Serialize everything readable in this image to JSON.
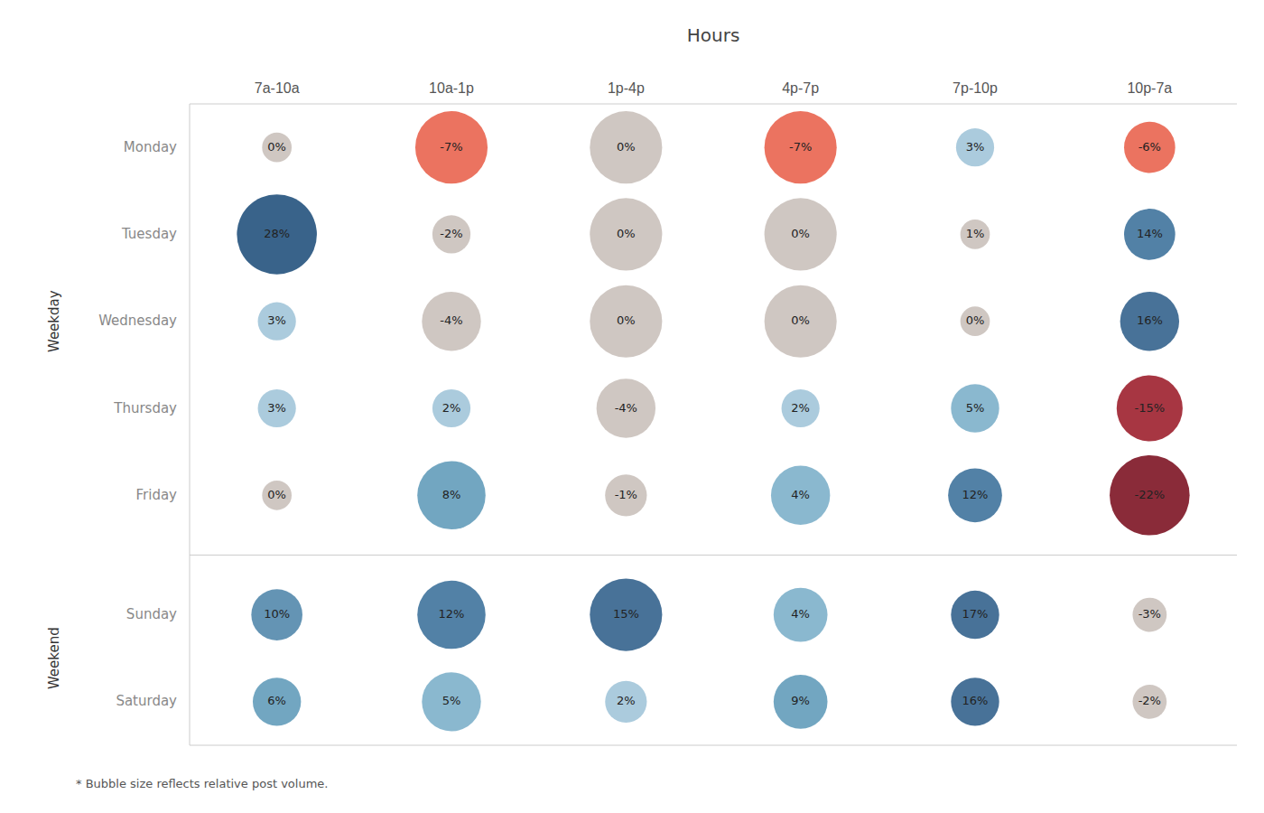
{
  "chart_data": {
    "type": "bubble",
    "title": "Hours",
    "categories": [
      "7a-10a",
      "10a-1p",
      "1p-4p",
      "4p-7p",
      "7p-10p",
      "10p-7a"
    ],
    "y_groups": [
      {
        "label": "Weekday",
        "categories": [
          "Monday",
          "Tuesday",
          "Wednesday",
          "Thursday",
          "Friday"
        ]
      },
      {
        "label": "Weekend",
        "categories": [
          "Sunday",
          "Saturday"
        ]
      }
    ],
    "values": [
      [
        0,
        -7,
        0,
        -7,
        3,
        -6
      ],
      [
        28,
        -2,
        0,
        0,
        1,
        14
      ],
      [
        3,
        -4,
        0,
        0,
        0,
        16
      ],
      [
        3,
        2,
        -4,
        2,
        5,
        -15
      ],
      [
        0,
        8,
        -1,
        4,
        12,
        -22
      ],
      [
        10,
        12,
        15,
        4,
        17,
        -3
      ],
      [
        6,
        5,
        2,
        9,
        16,
        -2
      ]
    ],
    "value_labels": [
      [
        "0%",
        "-7%",
        "0%",
        "-7%",
        "3%",
        "-6%"
      ],
      [
        "28%",
        "-2%",
        "0%",
        "0%",
        "1%",
        "14%"
      ],
      [
        "3%",
        "-4%",
        "0%",
        "0%",
        "0%",
        "16%"
      ],
      [
        "3%",
        "2%",
        "-4%",
        "2%",
        "5%",
        "-15%"
      ],
      [
        "0%",
        "8%",
        "-1%",
        "4%",
        "12%",
        "-22%"
      ],
      [
        "10%",
        "12%",
        "15%",
        "4%",
        "17%",
        "-3%"
      ],
      [
        "6%",
        "5%",
        "2%",
        "9%",
        "16%",
        "-2%"
      ]
    ],
    "bubble_sizes": [
      [
        300,
        1800,
        1800,
        1800,
        500,
        900
      ],
      [
        2200,
        500,
        1800,
        1800,
        300,
        900
      ],
      [
        500,
        1200,
        1800,
        1800,
        300,
        1200
      ],
      [
        500,
        500,
        1200,
        500,
        800,
        1500
      ],
      [
        300,
        1600,
        600,
        1200,
        1000,
        2200
      ],
      [
        900,
        1600,
        1800,
        1000,
        800,
        400
      ],
      [
        800,
        1200,
        600,
        1000,
        800,
        400
      ]
    ],
    "colors": [
      [
        "#c8bfba",
        "#e8604a",
        "#c8bfba",
        "#e8604a",
        "#9fc4d8",
        "#e8604a"
      ],
      [
        "#1e4d7a",
        "#c8bfba",
        "#c8bfba",
        "#c8bfba",
        "#c8bfba",
        "#3a6f9a"
      ],
      [
        "#9fc4d8",
        "#c8bfba",
        "#c8bfba",
        "#c8bfba",
        "#c8bfba",
        "#2f5f8a"
      ],
      [
        "#9fc4d8",
        "#9fc4d8",
        "#c8bfba",
        "#9fc4d8",
        "#7aaec8",
        "#9b1a28"
      ],
      [
        "#c8bfba",
        "#5f9ab8",
        "#c8bfba",
        "#7aaec8",
        "#3a6f9a",
        "#7a0e1e"
      ],
      [
        "#4e85aa",
        "#3a6f9a",
        "#2f5f8a",
        "#7aaec8",
        "#2f5f8a",
        "#c8bfba"
      ],
      [
        "#5f9ab8",
        "#7aaec8",
        "#9fc4d8",
        "#5f9ab8",
        "#2f5f8a",
        "#c8bfba"
      ]
    ],
    "data_labels": true,
    "footnote": "* Bubble size reflects relative post volume."
  }
}
